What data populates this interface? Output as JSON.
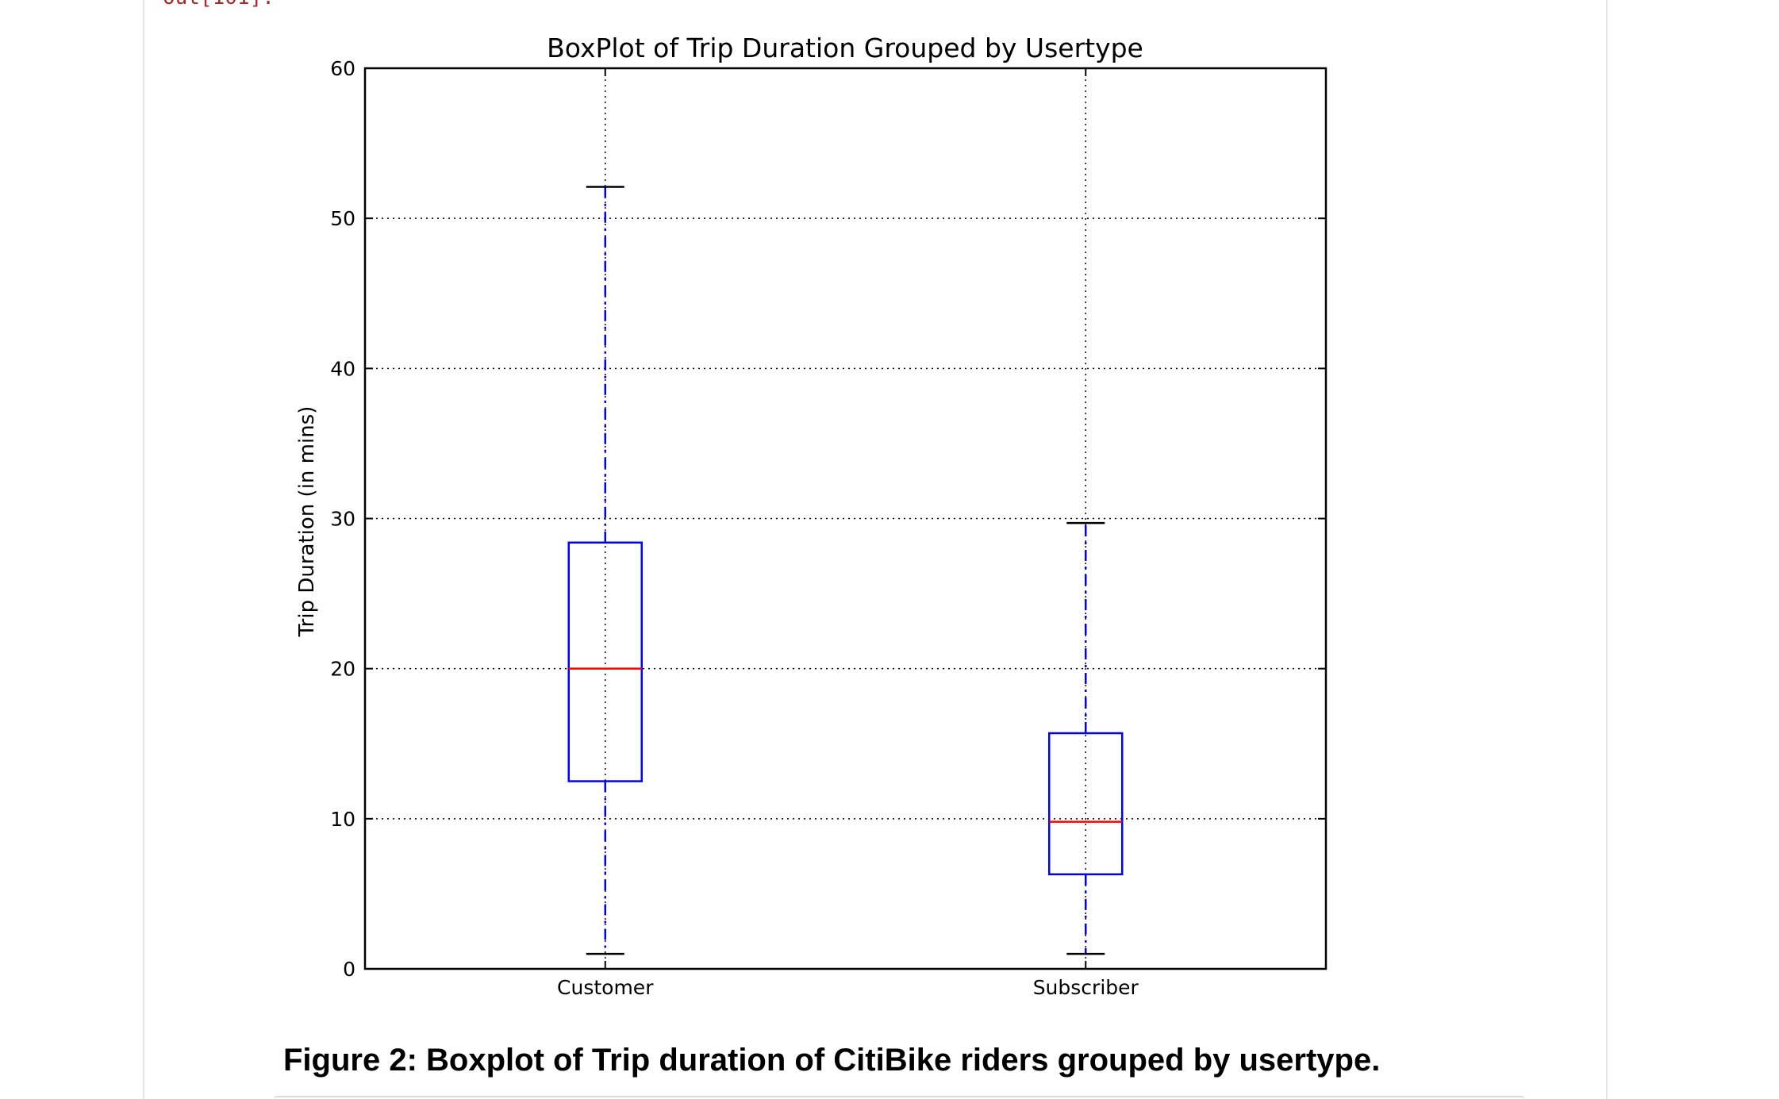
{
  "cell": {
    "prompt_fragment": "Out[101]:"
  },
  "caption": "Figure 2: Boxplot of Trip duration of CitiBike riders grouped by usertype.",
  "chart_data": {
    "type": "boxplot",
    "title": "BoxPlot of Trip Duration Grouped by Usertype",
    "xlabel": "",
    "ylabel": "Trip Duration (in mins)",
    "ylim": [
      0,
      60
    ],
    "yticks": [
      0,
      10,
      20,
      30,
      40,
      50,
      60
    ],
    "grid": true,
    "categories": [
      "Customer",
      "Subscriber"
    ],
    "boxes": [
      {
        "whisker_low": 1.0,
        "q1": 12.5,
        "median": 20.0,
        "q3": 28.4,
        "whisker_high": 52.1
      },
      {
        "whisker_low": 1.0,
        "q1": 6.3,
        "median": 9.8,
        "q3": 15.7,
        "whisker_high": 29.7
      }
    ],
    "colors": {
      "box": "#0000ff",
      "whisker": "#0000ff",
      "median": "#ff0000",
      "cap": "#000000",
      "grid": "#000000",
      "frame": "#000000"
    }
  }
}
